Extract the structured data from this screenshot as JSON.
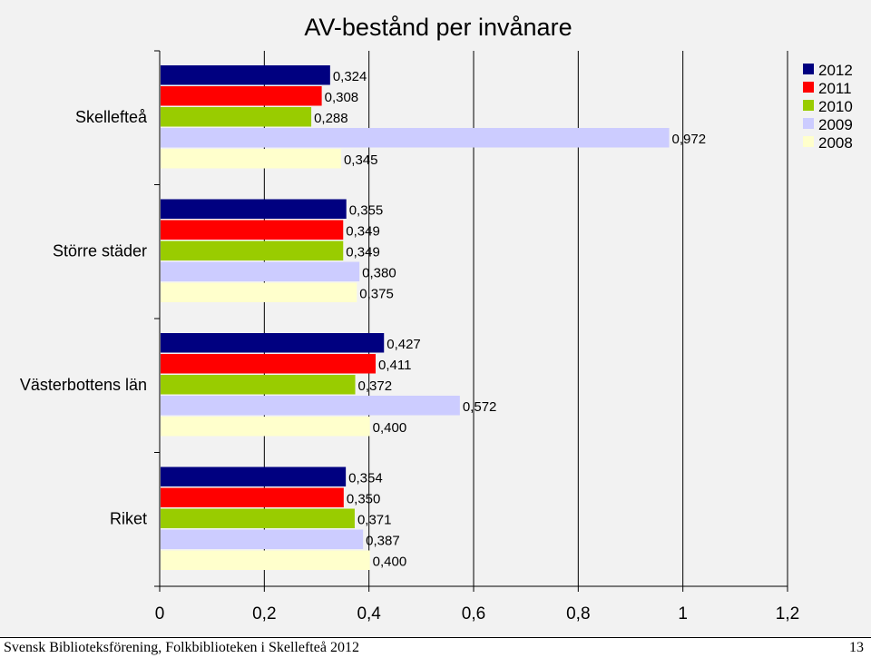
{
  "chart_data": {
    "type": "bar",
    "orientation": "horizontal",
    "title": "AV-bestånd per invånare",
    "categories": [
      "Skellefteå",
      "Större städer",
      "Västerbottens län",
      "Riket"
    ],
    "series": [
      {
        "name": "2012",
        "color": "#000080",
        "values": [
          0.324,
          0.355,
          0.427,
          0.354
        ],
        "labels": [
          "0,324",
          "0,355",
          "0,427",
          "0,354"
        ]
      },
      {
        "name": "2011",
        "color": "#ff0000",
        "values": [
          0.308,
          0.349,
          0.411,
          0.35
        ],
        "labels": [
          "0,308",
          "0,349",
          "0,411",
          "0,350"
        ]
      },
      {
        "name": "2010",
        "color": "#99cc00",
        "values": [
          0.288,
          0.349,
          0.372,
          0.371
        ],
        "labels": [
          "0,288",
          "0,349",
          "0,372",
          "0,371"
        ]
      },
      {
        "name": "2009",
        "color": "#ccccff",
        "values": [
          0.972,
          0.38,
          0.572,
          0.387
        ],
        "labels": [
          "0,972",
          "0,380",
          "0,572",
          "0,387"
        ]
      },
      {
        "name": "2008",
        "color": "#ffffcc",
        "values": [
          0.345,
          0.375,
          0.4,
          0.4
        ],
        "labels": [
          "0,345",
          "0,375",
          "0,400",
          "0,400"
        ]
      }
    ],
    "xlim": [
      0,
      1.2
    ],
    "xticks": [
      0,
      0.2,
      0.4,
      0.6,
      0.8,
      1,
      1.2
    ],
    "xtick_labels": [
      "0",
      "0,2",
      "0,4",
      "0,6",
      "0,8",
      "1",
      "1,2"
    ],
    "xlabel": "",
    "ylabel": "",
    "grid": "vertical",
    "legend_position": "top-right"
  },
  "footer": {
    "left": "Svensk Biblioteksförening, Folkbiblioteken i Skellefteå 2012",
    "right": "13"
  }
}
